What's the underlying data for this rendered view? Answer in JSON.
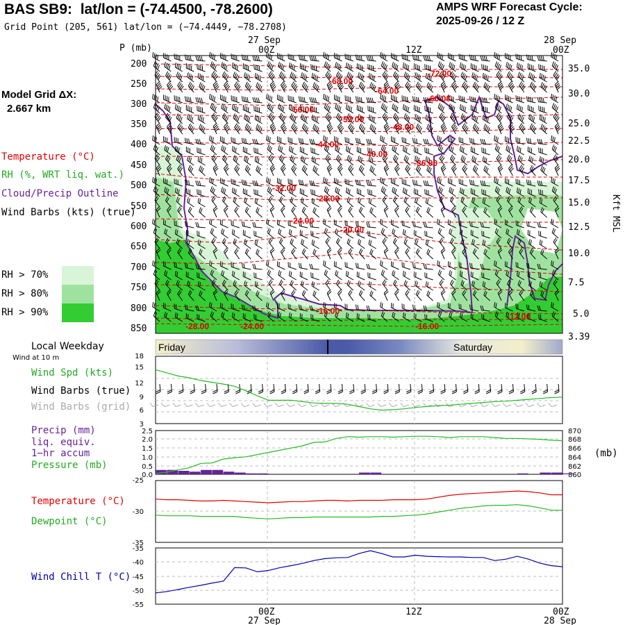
{
  "header": {
    "site": "BAS SB9:",
    "latlon": "lat/lon = (-74.4500, -78.2600)",
    "grid_point": "Grid Point (205, 561) lat/lon = (−74.4449, −78.2708)",
    "amps_title": "AMPS WRF Forecast Cycle:",
    "amps_cycle": "2025-09-26 / 12  Z",
    "model_grid_label": "Model Grid ΔX:",
    "model_grid_value": "2.667 km"
  },
  "time_axis": {
    "top_dates": [
      "27  Sep",
      "28  Sep"
    ],
    "hours": [
      "00Z",
      "12Z",
      "00Z"
    ],
    "bottom_dates": [
      "27  Sep",
      "28  Sep"
    ]
  },
  "weekday_band": {
    "title": "Local Weekday",
    "subtitle": "Wind at 10 m",
    "days": [
      "Friday",
      "Saturday"
    ]
  },
  "colors": {
    "temperature": "#e00000",
    "rh": "#22bb22",
    "cloud": "#662299",
    "wind": "#000000",
    "grid_wind": "#aaaaaa",
    "windchill": "#0000aa",
    "rh70": "#d8f5d8",
    "rh80": "#9fe29f",
    "rh90": "#33cc33"
  },
  "chart_data": [
    {
      "name": "cross-section",
      "type": "heatmap",
      "ylabel": "P (mb)",
      "y_ticks": [
        "200",
        "250",
        "300",
        "350",
        "400",
        "450",
        "500",
        "550",
        "600",
        "650",
        "700",
        "750",
        "800",
        "850"
      ],
      "right_label": "Kft MSL",
      "right_ticks": [
        "35.0",
        "30.0",
        "25.0",
        "22.5",
        "20.0",
        "17.5",
        "15.0",
        "12.5",
        "10.0",
        "7.5",
        "5.0",
        "3.39"
      ],
      "legend": {
        "temperature": "Temperature (°C)",
        "rh": "RH (%, WRT liq. wat.)",
        "cloud": "Cloud/Precip Outline",
        "wind": "Wind Barbs (kts) (true)"
      },
      "rh_legend": [
        "RH > 70%",
        "RH > 80%",
        "RH > 90%"
      ],
      "isotherm_labels": [
        "-72.00",
        "-68.00",
        "-64.00",
        "-60.00",
        "-56.00",
        "-52.00",
        "-48.00",
        "-44.00",
        "-40.00",
        "-36.00",
        "-32.00",
        "-28.00",
        "-24.00",
        "-20.00",
        "-16.00",
        "-12.00",
        "-16.00",
        "-28.00",
        "-24.00"
      ]
    },
    {
      "name": "surface-wind",
      "type": "line",
      "ylim": [
        3,
        18
      ],
      "y_ticks": [
        "18",
        "15",
        "12",
        "9",
        "6",
        "3"
      ],
      "labels": {
        "speed": "Wind Spd (kts)",
        "barbs": "Wind Barbs (true)",
        "grid_barbs": "Wind Barbs (grid)"
      },
      "x": [
        0,
        1,
        2,
        3,
        4,
        5,
        6,
        7,
        8,
        9,
        10,
        11,
        12,
        13,
        14,
        15,
        16,
        17,
        18,
        19,
        20,
        21,
        22,
        23,
        24,
        25,
        26,
        27,
        28,
        29,
        30,
        31,
        32,
        33,
        34,
        35,
        36
      ],
      "series": [
        {
          "name": "Wind Spd (kts)",
          "values": [
            15,
            14.3,
            13.6,
            13.2,
            12.6,
            12.2,
            11.8,
            11.3,
            10.3,
            9.2,
            8.2,
            8.2,
            8.2,
            7.9,
            7.6,
            7.5,
            7.5,
            7.3,
            6.8,
            6.3,
            6.0,
            6.1,
            6.3,
            6.6,
            6.8,
            7.0,
            7.1,
            7.3,
            7.5,
            7.7,
            7.9,
            8.0,
            8.2,
            8.4,
            8.6,
            8.8,
            8.9
          ]
        }
      ]
    },
    {
      "name": "precip-pressure",
      "type": "line",
      "ylim": [
        0,
        2.5
      ],
      "y_ticks": [
        "2.5",
        "2.0",
        "1.5",
        "1.0",
        "0.5",
        "0.0"
      ],
      "right_ticks": [
        "870",
        "868",
        "866",
        "864",
        "862",
        "860"
      ],
      "right_unit": "(mb)",
      "labels": {
        "precip": "Precip (mm)",
        "precip2": "liq. equiv.",
        "precip3": "1−hr accum",
        "pressure": "Pressure (mb)"
      },
      "x": [
        0,
        1,
        2,
        3,
        4,
        5,
        6,
        7,
        8,
        9,
        10,
        11,
        12,
        13,
        14,
        15,
        16,
        17,
        18,
        19,
        20,
        21,
        22,
        23,
        24,
        25,
        26,
        27,
        28,
        29,
        30,
        31,
        32,
        33,
        34,
        35,
        36
      ],
      "series": [
        {
          "name": "Pressure (mb)",
          "values": [
            860.2,
            860.5,
            861.0,
            861.5,
            862.5,
            862.6,
            863.5,
            863.8,
            864.0,
            864.5,
            865.0,
            865.5,
            866.0,
            866.5,
            867.3,
            867.4,
            868.2,
            868.6,
            868.5,
            868.6,
            868.6,
            868.5,
            868.6,
            868.7,
            868.7,
            868.6,
            868.4,
            868.6,
            868.6,
            868.6,
            868.4,
            868.2,
            868.2,
            868.1,
            868.0,
            867.8,
            867.7
          ]
        },
        {
          "name": "Precip (mm)",
          "values": [
            0.25,
            0.25,
            0.2,
            0.15,
            0.25,
            0.25,
            0.15,
            0.1,
            0.05,
            0.05,
            0.0,
            0.0,
            0.0,
            0.0,
            0.0,
            0.0,
            0.0,
            0.0,
            0.1,
            0.1,
            0.0,
            0.0,
            0.0,
            0.0,
            0.0,
            0.0,
            0.0,
            0.0,
            0.0,
            0.0,
            0.0,
            0.0,
            0.05,
            0.0,
            0.1,
            0.1,
            0.05
          ]
        }
      ]
    },
    {
      "name": "temperature-dewpoint",
      "type": "line",
      "ylim": [
        -35,
        -25
      ],
      "y_ticks": [
        "-25",
        "-30",
        "-35"
      ],
      "labels": {
        "temperature": "Temperature (°C)",
        "dewpoint": "Dewpoint (°C)"
      },
      "x": [
        0,
        1,
        2,
        3,
        4,
        5,
        6,
        7,
        8,
        9,
        10,
        11,
        12,
        13,
        14,
        15,
        16,
        17,
        18,
        19,
        20,
        21,
        22,
        23,
        24,
        25,
        26,
        27,
        28,
        29,
        30,
        31,
        32,
        33,
        34,
        35,
        36
      ],
      "series": [
        {
          "name": "Temperature (°C)",
          "values": [
            -28.0,
            -28.1,
            -28.1,
            -28.2,
            -28.3,
            -28.3,
            -28.2,
            -28.3,
            -28.4,
            -28.5,
            -28.6,
            -28.5,
            -28.4,
            -28.4,
            -28.3,
            -28.2,
            -28.2,
            -28.3,
            -28.2,
            -28.2,
            -28.2,
            -28.1,
            -28.1,
            -28.1,
            -28.0,
            -27.7,
            -27.4,
            -27.2,
            -27.1,
            -27.0,
            -26.9,
            -26.8,
            -26.7,
            -26.8,
            -27.0,
            -27.3,
            -27.3
          ]
        },
        {
          "name": "Dewpoint (°C)",
          "values": [
            -30.6,
            -30.7,
            -30.7,
            -30.7,
            -30.8,
            -30.8,
            -30.8,
            -30.8,
            -31.0,
            -31.1,
            -31.2,
            -31.1,
            -31.0,
            -31.0,
            -30.9,
            -30.9,
            -30.9,
            -30.9,
            -30.9,
            -30.9,
            -30.8,
            -30.8,
            -30.7,
            -30.6,
            -30.4,
            -30.1,
            -29.8,
            -29.5,
            -29.3,
            -29.1,
            -29.0,
            -29.0,
            -28.9,
            -29.1,
            -29.4,
            -29.8,
            -29.8
          ]
        }
      ]
    },
    {
      "name": "wind-chill",
      "type": "line",
      "ylim": [
        -55,
        -35
      ],
      "y_ticks": [
        "-35",
        "-40",
        "-45",
        "-50",
        "-55"
      ],
      "labels": {
        "windchill": "Wind Chill T (°C)"
      },
      "x": [
        0,
        1,
        2,
        3,
        4,
        5,
        6,
        7,
        8,
        9,
        10,
        11,
        12,
        13,
        14,
        15,
        16,
        17,
        18,
        19,
        20,
        21,
        22,
        23,
        24,
        25,
        26,
        27,
        28,
        29,
        30,
        31,
        32,
        33,
        34,
        35,
        36
      ],
      "series": [
        {
          "name": "Wind Chill T (°C)",
          "values": [
            -51.0,
            -50.5,
            -49.8,
            -49.0,
            -48.3,
            -47.5,
            -46.8,
            -42.0,
            -42.1,
            -43.5,
            -43.0,
            -42.0,
            -41.3,
            -40.5,
            -39.5,
            -38.8,
            -38.5,
            -38.4,
            -37.0,
            -36.0,
            -37.0,
            -38.2,
            -38.2,
            -37.6,
            -38.0,
            -38.1,
            -38.2,
            -38.2,
            -38.4,
            -38.4,
            -39.5,
            -39.0,
            -38.0,
            -39.0,
            -40.4,
            -41.3,
            -41.7
          ]
        }
      ]
    }
  ]
}
